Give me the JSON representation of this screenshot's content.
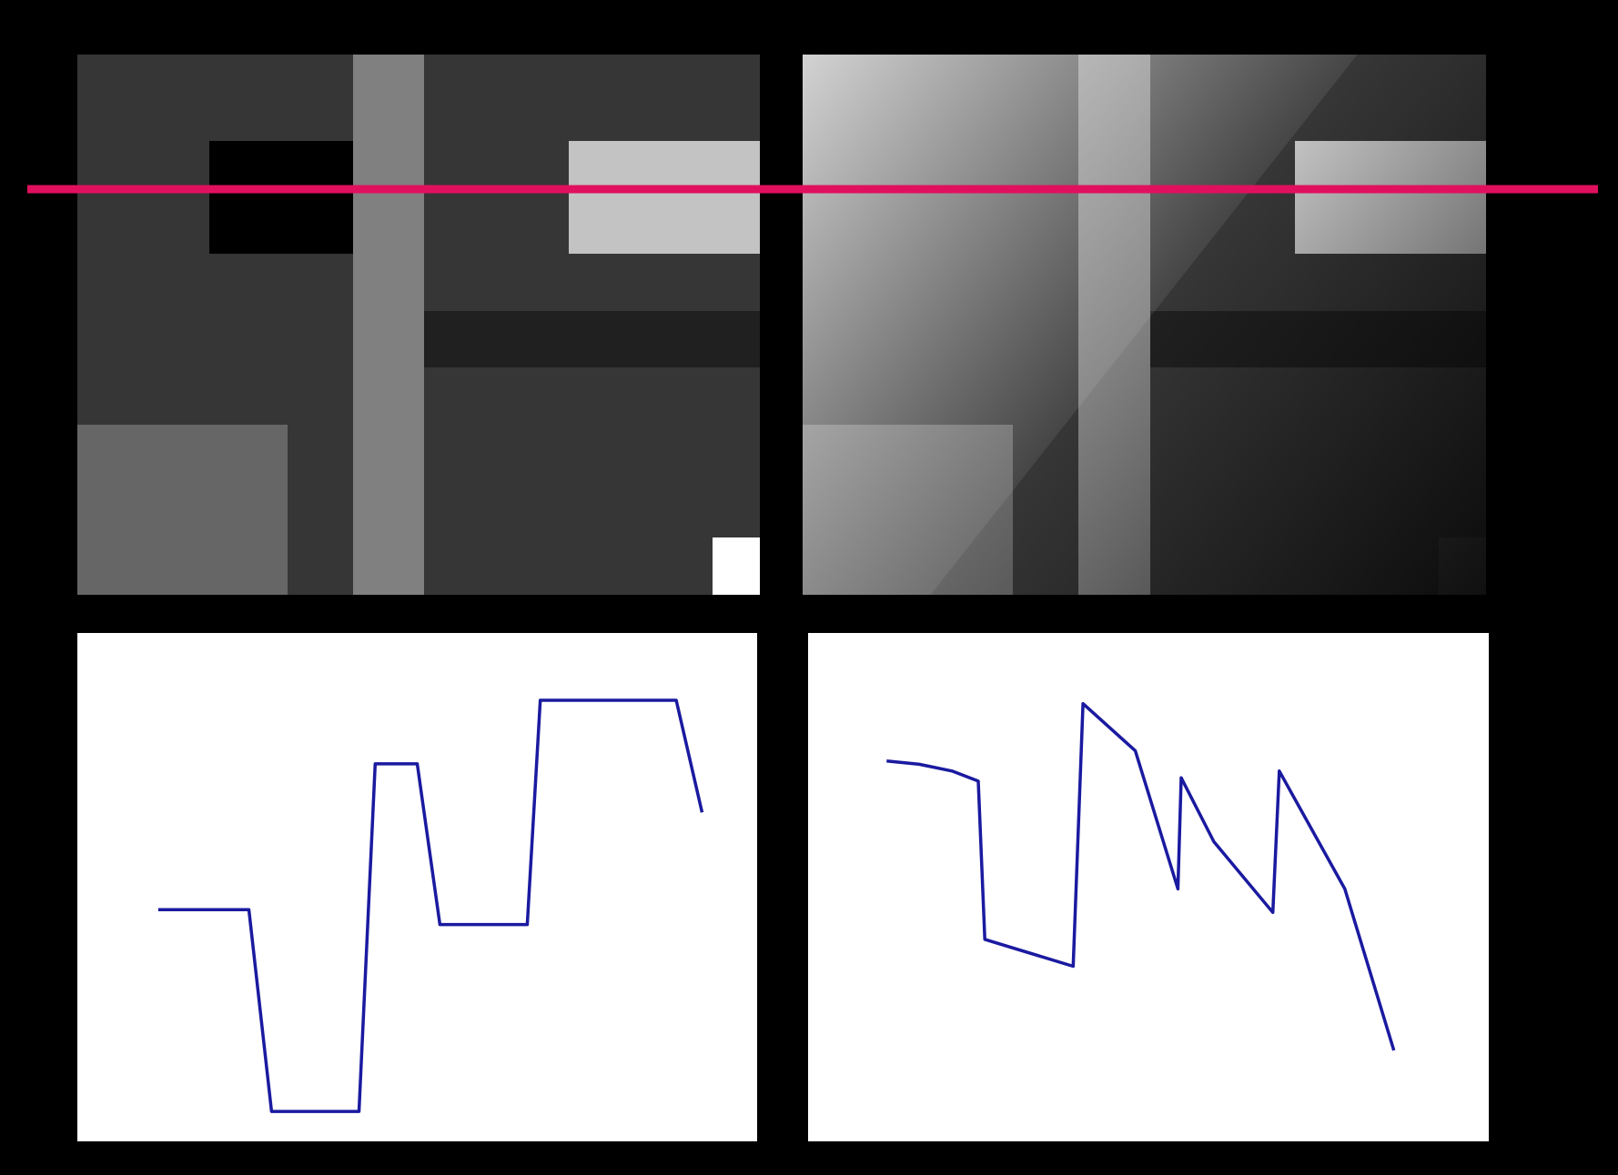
{
  "colors": {
    "background": "#000000",
    "scanline": "#e0105e",
    "profile_line": "#1a1aa0",
    "plot_background": "#ffffff"
  },
  "images": [
    {
      "name": "left-image",
      "shading": "uniform",
      "base_level": 54,
      "blocks": [
        {
          "name": "dark-square",
          "level": 0
        },
        {
          "name": "vertical-bar",
          "level": 128
        },
        {
          "name": "bright-rect",
          "level": 195
        },
        {
          "name": "dark-horizontal-band",
          "level": 32
        },
        {
          "name": "lower-left-block",
          "level": 102
        },
        {
          "name": "corner-square",
          "level": 255
        }
      ]
    },
    {
      "name": "right-image",
      "shading": "diagonal-gradient",
      "base_level": 54,
      "blocks": [
        {
          "name": "dark-square",
          "level": 54
        },
        {
          "name": "vertical-bar",
          "level": 128
        },
        {
          "name": "bright-rect",
          "level": 195
        },
        {
          "name": "dark-horizontal-band",
          "level": 32
        },
        {
          "name": "lower-left-block",
          "level": 102
        },
        {
          "name": "corner-square",
          "level": 72
        }
      ]
    }
  ],
  "chart_data": [
    {
      "type": "line",
      "name": "intensity-profile-left",
      "x": [
        0,
        28,
        35,
        62,
        67,
        80,
        87,
        114,
        118,
        160,
        168
      ],
      "values": [
        0.54,
        0.54,
        0.0,
        0.0,
        0.93,
        0.93,
        0.5,
        0.5,
        1.1,
        1.1,
        0.8
      ],
      "xlim": [
        -25,
        185
      ],
      "ylim": [
        -0.08,
        1.28
      ]
    },
    {
      "type": "line",
      "name": "intensity-profile-right",
      "x": [
        0,
        10,
        20,
        28,
        30,
        57,
        60,
        76,
        89,
        90,
        100,
        118,
        120,
        140,
        155
      ],
      "values": [
        1.0,
        0.99,
        0.97,
        0.94,
        0.47,
        0.39,
        1.17,
        1.03,
        0.62,
        0.95,
        0.76,
        0.55,
        0.97,
        0.62,
        0.14
      ],
      "xlim": [
        -24,
        184
      ],
      "ylim": [
        -0.13,
        1.38
      ]
    }
  ]
}
